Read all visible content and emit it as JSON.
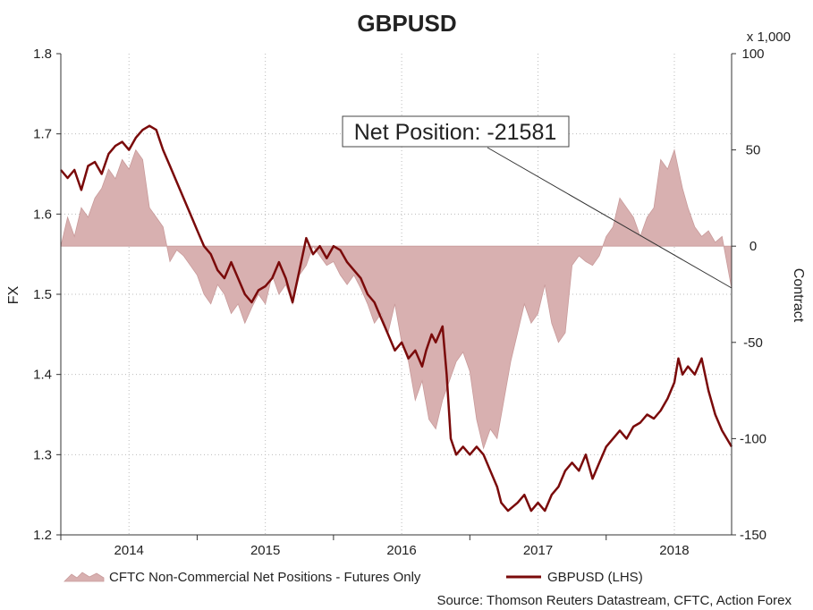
{
  "chart_data": {
    "type": "line+area",
    "title": "GBPUSD",
    "ylabel_left": "FX",
    "ylabel_right": "Contract",
    "right_axis_unit": "x 1,000",
    "left_ylim": [
      1.2,
      1.8
    ],
    "left_ticks": [
      "1.2",
      "1.3",
      "1.4",
      "1.5",
      "1.6",
      "1.7",
      "1.8"
    ],
    "right_ylim": [
      -150,
      100
    ],
    "right_ticks": [
      "-150",
      "-100",
      "-50",
      "0",
      "50",
      "100"
    ],
    "xlim": [
      2013.5,
      2018.42
    ],
    "x_ticks": [
      {
        "label": "2014",
        "x": 2014.0
      },
      {
        "label": "2015",
        "x": 2015.0
      },
      {
        "label": "2016",
        "x": 2016.0
      },
      {
        "label": "2017",
        "x": 2017.0
      },
      {
        "label": "2018",
        "x": 2018.0
      }
    ],
    "x_year_boundaries": [
      2013.5,
      2014.5,
      2015.5,
      2016.5,
      2017.5
    ],
    "grid": true,
    "legend_placement": "bottom",
    "annotation": {
      "text": "Net Position: -21581",
      "x": 2018.42,
      "value": -21.6
    },
    "source": "Source: Thomson Reuters Datastream, CFTC, Action Forex",
    "colors": {
      "gbpusd": "#7a0a0a",
      "positions_fill": "#d8b0b0",
      "positions_edge": "#c89a9a"
    },
    "series": [
      {
        "name": "CFTC Non-Commercial Net Positions - Futures Only",
        "axis": "right",
        "kind": "area",
        "points": [
          [
            2013.5,
            0
          ],
          [
            2013.55,
            15
          ],
          [
            2013.6,
            5
          ],
          [
            2013.65,
            20
          ],
          [
            2013.7,
            15
          ],
          [
            2013.75,
            25
          ],
          [
            2013.8,
            30
          ],
          [
            2013.85,
            40
          ],
          [
            2013.9,
            35
          ],
          [
            2013.95,
            45
          ],
          [
            2014.0,
            40
          ],
          [
            2014.05,
            50
          ],
          [
            2014.1,
            45
          ],
          [
            2014.15,
            20
          ],
          [
            2014.2,
            15
          ],
          [
            2014.25,
            10
          ],
          [
            2014.3,
            -8
          ],
          [
            2014.35,
            -2
          ],
          [
            2014.4,
            -5
          ],
          [
            2014.45,
            -10
          ],
          [
            2014.5,
            -15
          ],
          [
            2014.55,
            -25
          ],
          [
            2014.6,
            -30
          ],
          [
            2014.65,
            -20
          ],
          [
            2014.7,
            -25
          ],
          [
            2014.75,
            -35
          ],
          [
            2014.8,
            -30
          ],
          [
            2014.85,
            -40
          ],
          [
            2014.9,
            -32
          ],
          [
            2014.95,
            -25
          ],
          [
            2015.0,
            -30
          ],
          [
            2015.05,
            -15
          ],
          [
            2015.1,
            -25
          ],
          [
            2015.15,
            -20
          ],
          [
            2015.2,
            -30
          ],
          [
            2015.25,
            -15
          ],
          [
            2015.3,
            -10
          ],
          [
            2015.35,
            0
          ],
          [
            2015.4,
            -5
          ],
          [
            2015.45,
            -10
          ],
          [
            2015.5,
            -8
          ],
          [
            2015.55,
            -15
          ],
          [
            2015.6,
            -20
          ],
          [
            2015.65,
            -15
          ],
          [
            2015.7,
            -22
          ],
          [
            2015.75,
            -30
          ],
          [
            2015.8,
            -40
          ],
          [
            2015.85,
            -35
          ],
          [
            2015.9,
            -45
          ],
          [
            2015.95,
            -30
          ],
          [
            2016.0,
            -50
          ],
          [
            2016.05,
            -60
          ],
          [
            2016.1,
            -80
          ],
          [
            2016.15,
            -70
          ],
          [
            2016.2,
            -90
          ],
          [
            2016.25,
            -95
          ],
          [
            2016.3,
            -80
          ],
          [
            2016.35,
            -70
          ],
          [
            2016.4,
            -60
          ],
          [
            2016.45,
            -55
          ],
          [
            2016.5,
            -65
          ],
          [
            2016.55,
            -90
          ],
          [
            2016.6,
            -105
          ],
          [
            2016.65,
            -95
          ],
          [
            2016.7,
            -100
          ],
          [
            2016.75,
            -80
          ],
          [
            2016.8,
            -60
          ],
          [
            2016.85,
            -45
          ],
          [
            2016.9,
            -30
          ],
          [
            2016.95,
            -40
          ],
          [
            2017.0,
            -35
          ],
          [
            2017.05,
            -20
          ],
          [
            2017.1,
            -40
          ],
          [
            2017.15,
            -50
          ],
          [
            2017.2,
            -45
          ],
          [
            2017.25,
            -10
          ],
          [
            2017.3,
            -5
          ],
          [
            2017.35,
            -8
          ],
          [
            2017.4,
            -10
          ],
          [
            2017.45,
            -5
          ],
          [
            2017.5,
            5
          ],
          [
            2017.55,
            10
          ],
          [
            2017.6,
            25
          ],
          [
            2017.65,
            20
          ],
          [
            2017.7,
            15
          ],
          [
            2017.75,
            5
          ],
          [
            2017.8,
            15
          ],
          [
            2017.85,
            20
          ],
          [
            2017.9,
            45
          ],
          [
            2017.95,
            40
          ],
          [
            2018.0,
            50
          ],
          [
            2018.03,
            40
          ],
          [
            2018.06,
            30
          ],
          [
            2018.1,
            20
          ],
          [
            2018.15,
            10
          ],
          [
            2018.2,
            5
          ],
          [
            2018.25,
            8
          ],
          [
            2018.3,
            2
          ],
          [
            2018.35,
            5
          ],
          [
            2018.42,
            -22
          ]
        ]
      },
      {
        "name": "GBPUSD (LHS)",
        "axis": "left",
        "kind": "line",
        "points": [
          [
            2013.5,
            1.655
          ],
          [
            2013.55,
            1.645
          ],
          [
            2013.6,
            1.655
          ],
          [
            2013.65,
            1.63
          ],
          [
            2013.7,
            1.66
          ],
          [
            2013.75,
            1.665
          ],
          [
            2013.8,
            1.65
          ],
          [
            2013.85,
            1.675
          ],
          [
            2013.9,
            1.685
          ],
          [
            2013.95,
            1.69
          ],
          [
            2014.0,
            1.68
          ],
          [
            2014.05,
            1.695
          ],
          [
            2014.1,
            1.705
          ],
          [
            2014.15,
            1.71
          ],
          [
            2014.2,
            1.705
          ],
          [
            2014.25,
            1.68
          ],
          [
            2014.3,
            1.66
          ],
          [
            2014.35,
            1.64
          ],
          [
            2014.4,
            1.62
          ],
          [
            2014.45,
            1.6
          ],
          [
            2014.5,
            1.58
          ],
          [
            2014.55,
            1.56
          ],
          [
            2014.6,
            1.55
          ],
          [
            2014.65,
            1.53
          ],
          [
            2014.7,
            1.52
          ],
          [
            2014.75,
            1.54
          ],
          [
            2014.8,
            1.52
          ],
          [
            2014.85,
            1.5
          ],
          [
            2014.9,
            1.49
          ],
          [
            2014.95,
            1.505
          ],
          [
            2015.0,
            1.51
          ],
          [
            2015.05,
            1.52
          ],
          [
            2015.1,
            1.54
          ],
          [
            2015.15,
            1.52
          ],
          [
            2015.2,
            1.49
          ],
          [
            2015.25,
            1.53
          ],
          [
            2015.3,
            1.57
          ],
          [
            2015.35,
            1.55
          ],
          [
            2015.4,
            1.56
          ],
          [
            2015.45,
            1.545
          ],
          [
            2015.5,
            1.56
          ],
          [
            2015.55,
            1.555
          ],
          [
            2015.6,
            1.54
          ],
          [
            2015.65,
            1.53
          ],
          [
            2015.7,
            1.52
          ],
          [
            2015.75,
            1.5
          ],
          [
            2015.8,
            1.49
          ],
          [
            2015.85,
            1.47
          ],
          [
            2015.9,
            1.45
          ],
          [
            2015.95,
            1.43
          ],
          [
            2016.0,
            1.44
          ],
          [
            2016.05,
            1.42
          ],
          [
            2016.1,
            1.43
          ],
          [
            2016.15,
            1.41
          ],
          [
            2016.18,
            1.43
          ],
          [
            2016.22,
            1.45
          ],
          [
            2016.25,
            1.44
          ],
          [
            2016.3,
            1.46
          ],
          [
            2016.33,
            1.4
          ],
          [
            2016.36,
            1.32
          ],
          [
            2016.4,
            1.3
          ],
          [
            2016.45,
            1.31
          ],
          [
            2016.5,
            1.3
          ],
          [
            2016.55,
            1.31
          ],
          [
            2016.6,
            1.3
          ],
          [
            2016.65,
            1.28
          ],
          [
            2016.7,
            1.26
          ],
          [
            2016.73,
            1.24
          ],
          [
            2016.78,
            1.23
          ],
          [
            2016.85,
            1.24
          ],
          [
            2016.9,
            1.25
          ],
          [
            2016.95,
            1.23
          ],
          [
            2017.0,
            1.24
          ],
          [
            2017.05,
            1.23
          ],
          [
            2017.1,
            1.25
          ],
          [
            2017.15,
            1.26
          ],
          [
            2017.2,
            1.28
          ],
          [
            2017.25,
            1.29
          ],
          [
            2017.3,
            1.28
          ],
          [
            2017.35,
            1.3
          ],
          [
            2017.4,
            1.27
          ],
          [
            2017.45,
            1.29
          ],
          [
            2017.5,
            1.31
          ],
          [
            2017.55,
            1.32
          ],
          [
            2017.6,
            1.33
          ],
          [
            2017.65,
            1.32
          ],
          [
            2017.7,
            1.335
          ],
          [
            2017.75,
            1.34
          ],
          [
            2017.8,
            1.35
          ],
          [
            2017.85,
            1.345
          ],
          [
            2017.9,
            1.355
          ],
          [
            2017.95,
            1.37
          ],
          [
            2018.0,
            1.39
          ],
          [
            2018.03,
            1.42
          ],
          [
            2018.06,
            1.4
          ],
          [
            2018.1,
            1.41
          ],
          [
            2018.15,
            1.4
          ],
          [
            2018.2,
            1.42
          ],
          [
            2018.25,
            1.38
          ],
          [
            2018.3,
            1.35
          ],
          [
            2018.35,
            1.33
          ],
          [
            2018.42,
            1.31
          ]
        ]
      }
    ]
  }
}
